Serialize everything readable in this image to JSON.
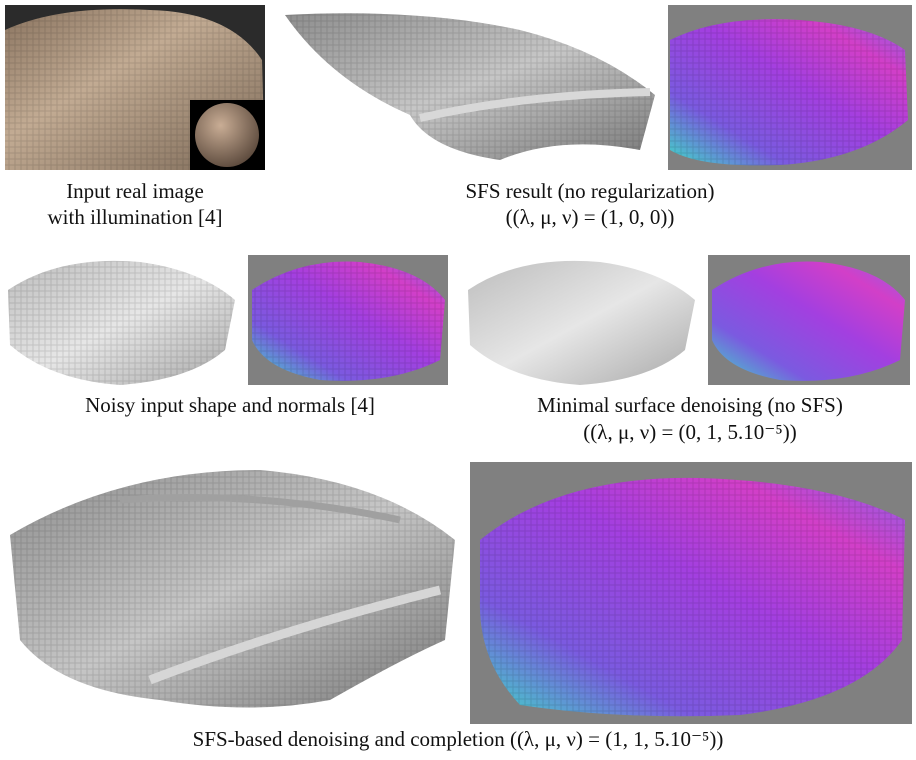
{
  "figure": {
    "panels": [
      {
        "caption": [
          "Input real image",
          "with illumination [4]"
        ]
      },
      {
        "caption": [
          "SFS result (no regularization)",
          "((λ, μ, ν) = (1, 0, 0))"
        ]
      },
      {
        "caption": [
          "Noisy input shape and normals [4]"
        ]
      },
      {
        "caption": [
          "Minimal surface denoising (no SFS)",
          "((λ, μ, ν) = (0, 1, 5.10⁻⁵))"
        ]
      },
      {
        "caption": [
          "SFS-based denoising and completion ((λ, μ, ν) = (1, 1, 5.10⁻⁵))"
        ]
      }
    ]
  }
}
